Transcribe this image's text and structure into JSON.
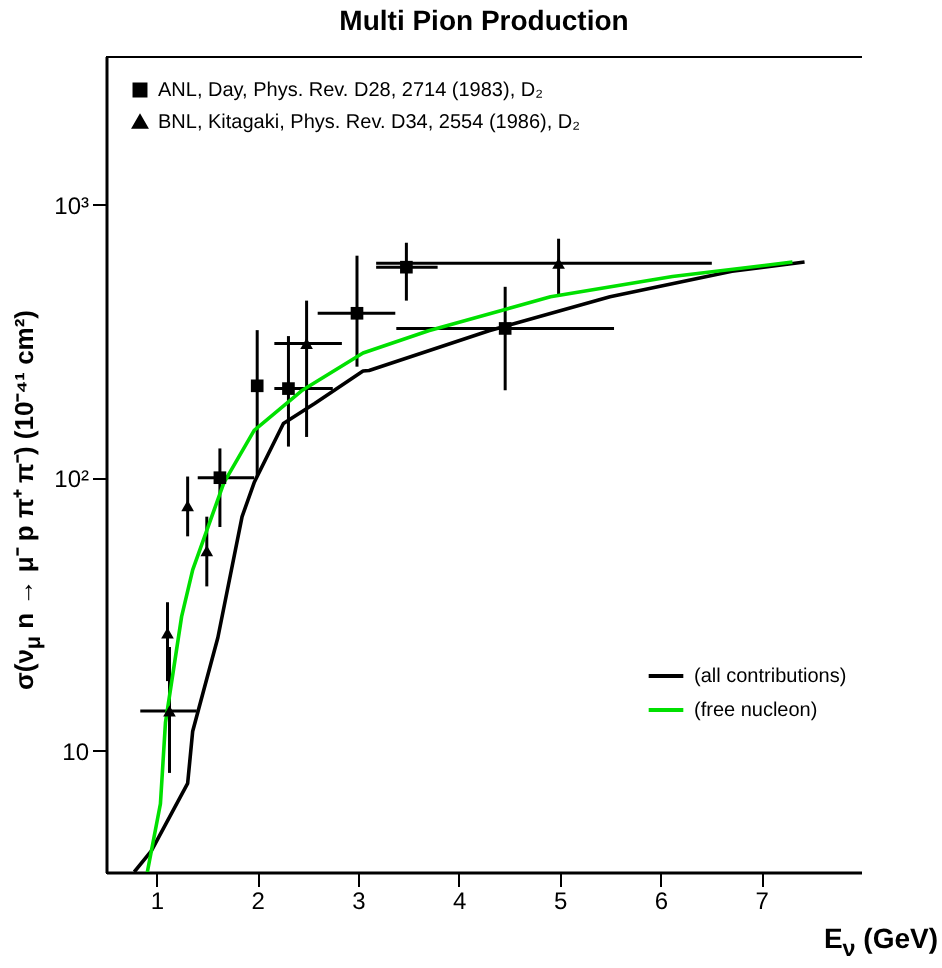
{
  "chart_data": {
    "type": "scatter",
    "title": "Multi Pion Production",
    "xlabel": "E$_{ν}$ (GeV)",
    "ylabel": "σ(ν$_{μ}$ n → μ⁻ p π⁺ π⁻) (10⁻⁴¹ cm²)",
    "log": "y",
    "grid": false,
    "legend": "top left",
    "xlim": [
      0.5,
      8
    ],
    "xticks": [
      1,
      2,
      3,
      4,
      5,
      6,
      7
    ],
    "ylim": [
      3.6,
      3500
    ],
    "yticks": [
      {
        "value": 10,
        "label": "10"
      },
      {
        "value": 100,
        "label": "10²"
      },
      {
        "value": 1000,
        "label": "10³"
      }
    ],
    "series": [
      {
        "name": "ANL, Day, Phys. Rev. D28, 2714 (1983), D₂",
        "marker": "square",
        "color": "#000000",
        "x": [
          1.63,
          2.0,
          2.31,
          2.99,
          3.48,
          4.46
        ],
        "values": [
          100,
          217,
          212,
          400,
          590,
          352
        ],
        "errors": [
          [
            66,
            128
          ],
          [
            101,
            347
          ],
          [
            130,
            330
          ],
          [
            255,
            650
          ],
          [
            445,
            725
          ],
          [
            209,
            500
          ]
        ],
        "xerrors": [
          [
            1.41,
            1.97
          ],
          null,
          [
            2.17,
            2.75
          ],
          [
            2.6,
            3.37
          ],
          [
            3.18,
            3.79
          ],
          [
            3.38,
            5.54
          ]
        ]
      },
      {
        "name": "BNL, Kitagaki, Phys. Rev. D34, 2554 (1986), D₂",
        "marker": "triangle",
        "color": "#000000",
        "x": [
          1.13,
          1.11,
          1.31,
          1.5,
          2.49,
          4.99
        ],
        "values": [
          14,
          27,
          79,
          54,
          310,
          610
        ],
        "errors": [
          [
            8.3,
            24
          ],
          [
            18,
            35
          ],
          [
            61,
            101
          ],
          [
            40,
            72
          ],
          [
            141,
            445
          ],
          [
            460,
            750
          ]
        ],
        "xerrors": [
          [
            0.84,
            1.4
          ],
          null,
          null,
          null,
          [
            2.17,
            2.84
          ],
          [
            3.18,
            6.51
          ]
        ]
      },
      {
        "name": "(all contributions)",
        "type": "line",
        "color": "#000000",
        "x": [
          0.78,
          0.95,
          1.31,
          1.36,
          1.61,
          1.85,
          1.97,
          2.26,
          2.57,
          3.05,
          3.11,
          4.3,
          5.5,
          6.71,
          7.43
        ],
        "values": [
          3.6,
          4.3,
          7.6,
          11.8,
          26,
          72,
          96,
          158,
          187,
          246,
          247,
          345,
          460,
          570,
          616
        ]
      },
      {
        "name": "(free nucleon)",
        "type": "line",
        "color": "#00e000",
        "x": [
          0.91,
          1.04,
          1.09,
          1.25,
          1.36,
          1.67,
          1.97,
          2.44,
          3.05,
          3.7,
          4.91,
          6.12,
          7.31
        ],
        "values": [
          3.6,
          6.4,
          12.7,
          31,
          46,
          96,
          149,
          208,
          286,
          345,
          460,
          545,
          616
        ]
      }
    ]
  }
}
